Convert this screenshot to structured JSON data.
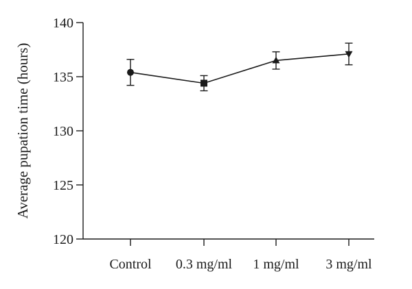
{
  "chart_data": {
    "type": "line",
    "title": "",
    "xlabel": "",
    "ylabel": "Average pupation time (hours)",
    "categories": [
      "Control",
      "0.3 mg/ml",
      "1 mg/ml",
      "3 mg/ml"
    ],
    "ylim": [
      120,
      140
    ],
    "yticks": [
      120,
      125,
      130,
      135,
      140
    ],
    "grid": false,
    "legend": "none",
    "series": [
      {
        "values": [
          135.4,
          134.4,
          136.5,
          137.1
        ],
        "error": [
          1.2,
          0.7,
          0.8,
          1.0
        ],
        "markers": [
          "circle",
          "square",
          "triangle-up",
          "triangle-down"
        ]
      }
    ],
    "colors": {
      "ink": "#1a1a1a",
      "background": "#ffffff"
    }
  }
}
